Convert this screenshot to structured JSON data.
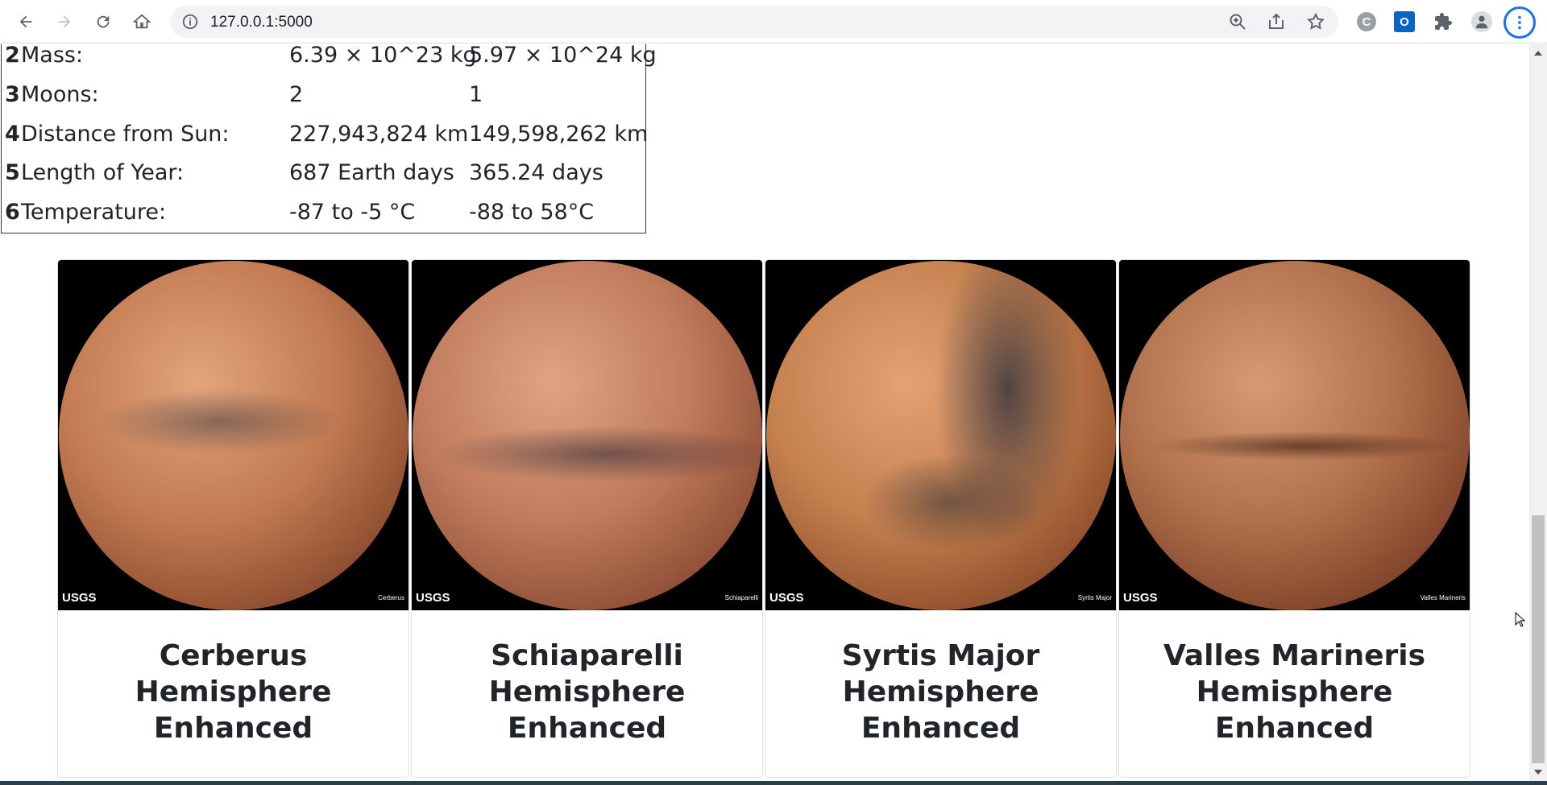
{
  "browser": {
    "url": "127.0.0.1:5000",
    "ext_c_label": "C",
    "ext_outlook_label": "O"
  },
  "facts": {
    "rows": [
      {
        "index": "2",
        "label": "Mass:",
        "mars": "6.39 × 10^23 kg",
        "earth": "5.97 × 10^24 kg"
      },
      {
        "index": "3",
        "label": "Moons:",
        "mars": "2",
        "earth": "1"
      },
      {
        "index": "4",
        "label": "Distance from Sun:",
        "mars": "227,943,824 km",
        "earth": "149,598,262 km"
      },
      {
        "index": "5",
        "label": "Length of Year:",
        "mars": "687 Earth days",
        "earth": "365.24 days"
      },
      {
        "index": "6",
        "label": "Temperature:",
        "mars": "-87 to -5 °C",
        "earth": "-88 to 58°C"
      }
    ]
  },
  "hemispheres": [
    {
      "title": "Cerberus Hemisphere Enhanced",
      "logo": "USGS",
      "caption": "Cerberus"
    },
    {
      "title": "Schiaparelli Hemisphere Enhanced",
      "logo": "USGS",
      "caption": "Schiaparelli"
    },
    {
      "title": "Syrtis Major Hemisphere Enhanced",
      "logo": "USGS",
      "caption": "Syrtis Major"
    },
    {
      "title": "Valles Marineris Hemisphere Enhanced",
      "logo": "USGS",
      "caption": "Valles Marineris"
    }
  ],
  "colors": {
    "accent": "#1a73e8",
    "text": "#212529"
  }
}
